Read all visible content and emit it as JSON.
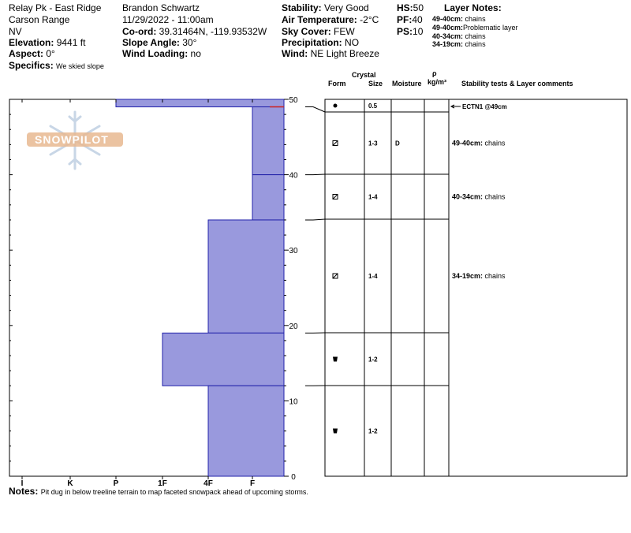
{
  "header": {
    "location": "Relay Pk - East Ridge",
    "range": "Carson Range",
    "state": "NV",
    "elevation_label": "Elevation:",
    "elevation_value": "9441 ft",
    "aspect_label": "Aspect:",
    "aspect_value": "0°",
    "specifics_label": "Specifics:",
    "specifics_value": "We skied slope",
    "observer": "Brandon Schwartz",
    "datetime": "11/29/2022 - 11:00am",
    "coord_label": "Co-ord:",
    "coord_value": "39.31464N, -119.93532W",
    "slope_label": "Slope Angle:",
    "slope_value": "30°",
    "wind_loading_label": "Wind Loading:",
    "wind_loading_value": "no",
    "stability_label": "Stability:",
    "stability_value": "Very Good",
    "air_temp_label": "Air Temperature:",
    "air_temp_value": "-2°C",
    "sky_label": "Sky Cover:",
    "sky_value": "FEW",
    "precip_label": "Precipitation:",
    "precip_value": "NO",
    "wind_label": "Wind:",
    "wind_value": "NE Light Breeze",
    "hs_label": "HS:",
    "hs_value": "50",
    "pf_label": "PF:",
    "pf_value": "40",
    "ps_label": "PS:",
    "ps_value": "10",
    "layer_notes_title": "Layer Notes:",
    "layer_notes": [
      {
        "range": "49-40cm:",
        "text": "chains"
      },
      {
        "range": "49-40cm:",
        "text": "Problematic layer"
      },
      {
        "range": "40-34cm:",
        "text": "chains"
      },
      {
        "range": "34-19cm:",
        "text": "chains"
      }
    ]
  },
  "table_headers": {
    "crystal": "Crystal",
    "form": "Form",
    "size": "Size",
    "moisture": "Moisture",
    "rho": "ρ",
    "density_unit": "kg/m³",
    "stability": "Stability tests & Layer comments"
  },
  "logo_text": "SNOWPILOT",
  "notes_label": "Notes:",
  "notes_value": "Pit dug in below treeline terrain to map faceted snowpack ahead of upcoming storms.",
  "colors": {
    "bar_fill": "#9999dd",
    "bar_edge": "#2222aa",
    "temp_line": "#cc2222",
    "logo": "#c8d6e6"
  },
  "chart_data": {
    "type": "bar",
    "y_axis_label": "",
    "ylim": [
      0,
      50
    ],
    "y_ticks": [
      0,
      10,
      20,
      30,
      40,
      50
    ],
    "hardness_scale": [
      "I",
      "K",
      "P",
      "1F",
      "4F",
      "F"
    ],
    "layers": [
      {
        "top": 50,
        "bottom": 49,
        "hardness": "P",
        "form": "rounds-icon",
        "size": "0.5",
        "moisture": "",
        "comment_label": "",
        "comment_text": ""
      },
      {
        "top": 49,
        "bottom": 40,
        "hardness": "F",
        "form": "facets-icon",
        "size": "1-3",
        "moisture": "D",
        "comment_label": "49-40cm:",
        "comment_text": "chains"
      },
      {
        "top": 40,
        "bottom": 34,
        "hardness": "F",
        "form": "facets-icon",
        "size": "1-4",
        "moisture": "",
        "comment_label": "40-34cm:",
        "comment_text": "chains"
      },
      {
        "top": 34,
        "bottom": 19,
        "hardness": "4F",
        "form": "facets-icon",
        "size": "1-4",
        "moisture": "",
        "comment_label": "34-19cm:",
        "comment_text": "chains"
      },
      {
        "top": 19,
        "bottom": 12,
        "hardness": "1F",
        "form": "depth-hoar-icon",
        "size": "1-2",
        "moisture": "",
        "comment_label": "",
        "comment_text": ""
      },
      {
        "top": 12,
        "bottom": 0,
        "hardness": "4F",
        "form": "depth-hoar-icon",
        "size": "1-2",
        "moisture": "",
        "comment_label": "",
        "comment_text": ""
      }
    ],
    "stability_tests": [
      {
        "label": "ECTN1 @49cm",
        "depth": 49
      }
    ]
  }
}
